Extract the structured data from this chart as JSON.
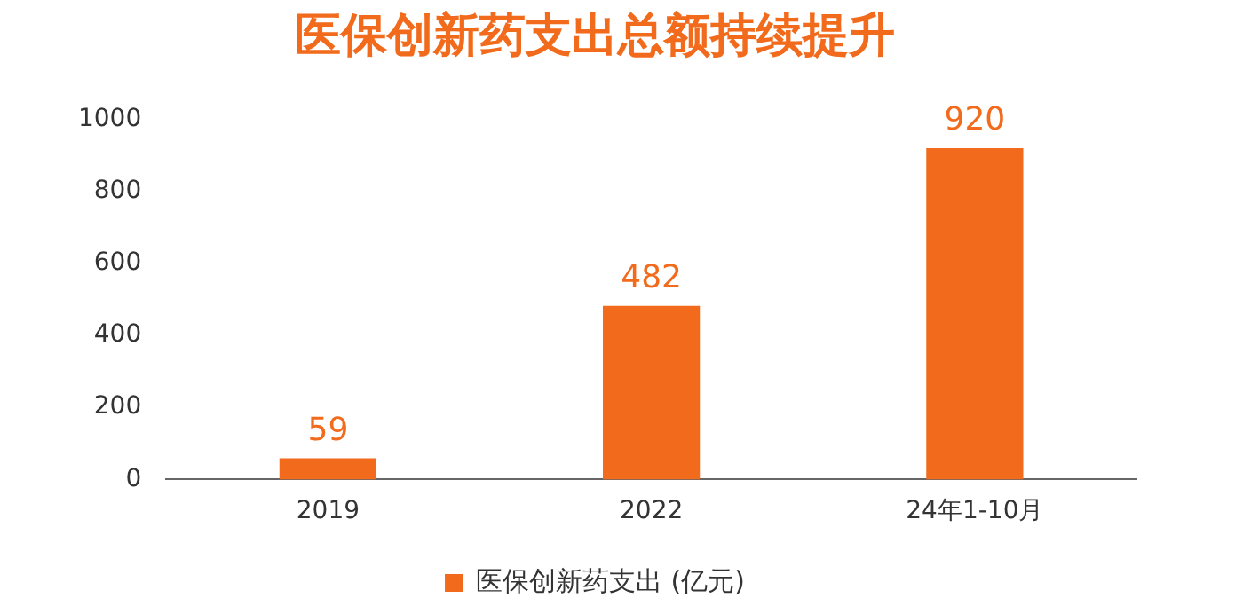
{
  "chart_data": {
    "type": "bar",
    "title": "医保创新药支出总额持续提升",
    "categories": [
      "2019",
      "2022",
      "24年1-10月"
    ],
    "series": [
      {
        "name": "医保创新药支出 (亿元)",
        "color": "#f26b1d",
        "values": [
          59,
          482,
          920
        ]
      }
    ],
    "ylim": [
      0,
      1000
    ],
    "yticks": [
      0,
      200,
      400,
      600,
      800,
      1000
    ],
    "grid": false,
    "legend": "bottom",
    "data_labels": true
  }
}
